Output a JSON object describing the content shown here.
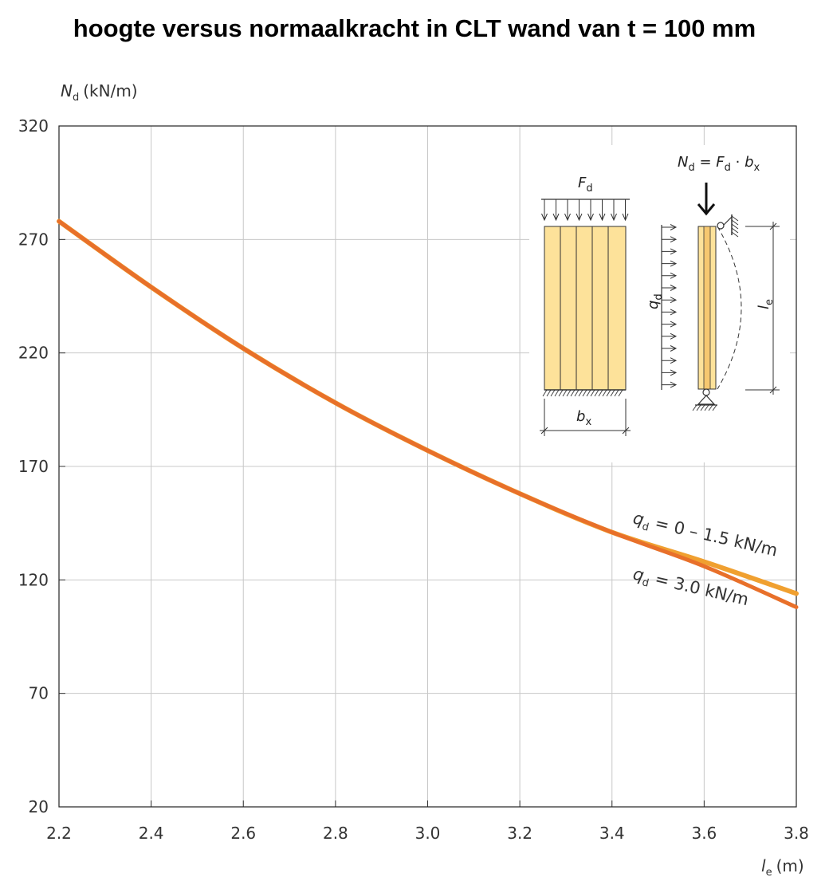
{
  "chart_data": {
    "type": "line",
    "title": "hoogte versus normaalkracht in CLT wand van t = 100 mm",
    "ylabel": {
      "symbol": "N",
      "sub": "d",
      "unit": "(kN/m)"
    },
    "xlabel": {
      "symbol": "l",
      "sub": "e",
      "unit": "(m)"
    },
    "xlim": [
      2.2,
      3.8
    ],
    "ylim": [
      20,
      320
    ],
    "xticks": [
      "2.2",
      "2.4",
      "2.6",
      "2.8",
      "3.0",
      "3.2",
      "3.4",
      "3.6",
      "3.8"
    ],
    "yticks": [
      "20",
      "70",
      "120",
      "170",
      "220",
      "270",
      "320"
    ],
    "grid": true,
    "series": [
      {
        "name": "q_d = 0 – 1.5 kN/m",
        "color": "#f0a030",
        "x": [
          2.2,
          2.4,
          2.6,
          2.8,
          3.0,
          3.2,
          3.4,
          3.6,
          3.8
        ],
        "y": [
          278,
          249,
          222,
          198,
          177,
          158,
          141,
          128,
          114
        ]
      },
      {
        "name": "q_d = 3.0 kN/m",
        "color": "#e8702a",
        "x": [
          2.2,
          2.4,
          2.6,
          2.8,
          3.0,
          3.2,
          3.4,
          3.6,
          3.8
        ],
        "y": [
          278,
          249,
          222,
          198,
          177,
          158,
          141,
          126,
          108
        ]
      }
    ],
    "annotations": [
      {
        "q": "q",
        "sub": "d",
        "text": " = 0 – 1.5 kN/m"
      },
      {
        "q": "q",
        "sub": "d",
        "text": " = 3.0 kN/m"
      }
    ]
  },
  "diagram": {
    "load_label": {
      "symbol": "F",
      "sub": "d"
    },
    "width_label": {
      "symbol": "b",
      "sub": "x"
    },
    "lateral_label": {
      "symbol": "q",
      "sub": "d"
    },
    "formula": {
      "n": "N",
      "n_sub": "d",
      "eq": " = ",
      "f": "F",
      "f_sub": "d",
      "dot": " · ",
      "b": "b",
      "b_sub": "x"
    },
    "length_label": {
      "symbol": "l",
      "sub": "e"
    },
    "colors": {
      "panel": "#fde29a",
      "panel_dark": "#f6c870",
      "stroke": "#333333"
    }
  }
}
